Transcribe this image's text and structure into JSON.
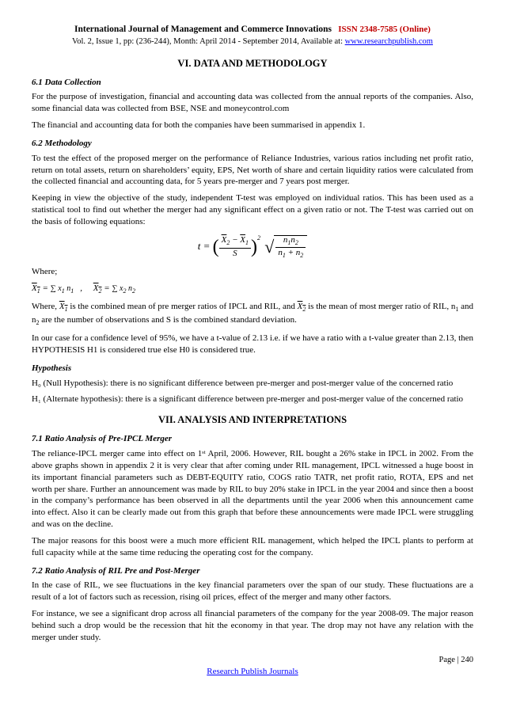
{
  "header": {
    "journal": "International Journal of Management and Commerce Innovations",
    "issn": "ISSN 2348-7585 (Online)",
    "volinfo_prefix": "Vol. 2, Issue 1, pp: (236-244), Month: April 2014 - September 2014, Available at: ",
    "site": "www.researchpublish.com"
  },
  "sec6": {
    "title": "VI. DATA AND METHODOLOGY",
    "s61": {
      "head": "6.1 Data Collection",
      "p1": "For the purpose of investigation, financial and accounting data was collected from the annual reports of the companies. Also, some financial data was collected from BSE, NSE and moneycontrol.com",
      "p2": "The financial and accounting data for both the companies have been summarised in appendix 1."
    },
    "s62": {
      "head": "6.2 Methodology",
      "p1": "To test the effect of the proposed merger on the performance of Reliance Industries, various ratios including net profit ratio, return on total assets, return on shareholders’ equity, EPS, Net worth of share and certain liquidity ratios were calculated from the collected financial and accounting data, for 5 years pre-merger and 7 years post merger.",
      "p2": "Keeping in view the objective of the study, independent T-test was employed on individual ratios. This has been used as a statistical tool to find out whether the merger had any significant effect on a given ratio or not. The T-test was carried out on the basis of following equations:",
      "where": "Where;",
      "p3_pre": "Where, ",
      "p3_mid1": " is the combined mean of pre merger ratios of IPCL and RIL, and ",
      "p3_mid2": " is the mean of most merger ratio of RIL, n",
      "p3_mid3": " and n",
      "p3_end": " are the number of observations and S is the combined standard deviation.",
      "p4": "In our case for a confidence level of 95%, we have a t-value of 2.13 i.e. if we have a ratio with a t-value greater than 2.13, then HYPOTHESIS H1 is considered true else H0 is considered true."
    },
    "hyp": {
      "head": "Hypothesis",
      "h0": "H₀ (Null Hypothesis): there is no significant difference between pre-merger and post-merger value of the concerned ratio",
      "h1": "H₁ (Alternate hypothesis): there is a significant difference between pre-merger and post-merger value of the concerned ratio"
    }
  },
  "sec7": {
    "title": "VII. ANALYSIS AND INTERPRETATIONS",
    "s71": {
      "head": "7.1 Ratio Analysis of Pre-IPCL Merger",
      "p1": "The reliance-IPCL merger came into effect on 1ˢᵗ April, 2006. However, RIL bought a 26% stake in IPCL in 2002. From the above graphs shown in appendix 2 it is very clear that after coming under RIL management, IPCL witnessed a huge boost in its important financial parameters such as DEBT-EQUITY ratio, COGS ratio TATR, net profit ratio, ROTA, EPS and net worth per share. Further an announcement was made by RIL to buy 20% stake in IPCL in the year 2004 and since then a boost in the company’s performance has been observed in all the departments until the year 2006 when this announcement came into effect. Also it can be clearly made out from this graph that before these announcements were made IPCL were struggling and was on the decline.",
      "p2": "The major reasons for this boost were a much more efficient RIL management, which helped the IPCL plants to perform at full capacity while at the same time reducing the operating cost for the company."
    },
    "s72": {
      "head": "7.2 Ratio Analysis of RIL Pre and Post-Merger",
      "p1": "In the case of RIL, we see fluctuations in the key financial parameters over the span of our study. These fluctuations are a result of a lot of factors such as recession, rising oil prices, effect of the merger and many other factors.",
      "p2": "For instance, we see a significant drop across all financial parameters of the company for the year 2008-09. The major reason behind such a drop would be the recession that hit the economy in that year. The drop may not have any relation with the merger under study."
    }
  },
  "footer": {
    "page": "Page | 240",
    "pub": "Research Publish Journals"
  }
}
